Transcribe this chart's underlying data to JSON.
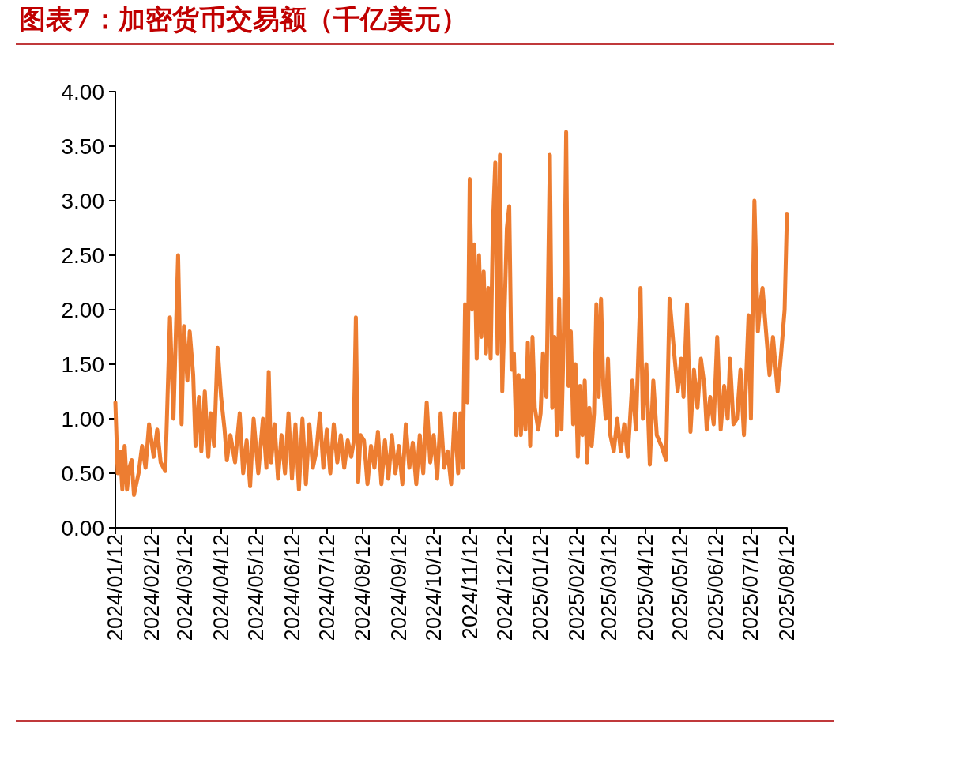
{
  "chart_data": {
    "type": "line",
    "title": "图表7：加密货币交易额（千亿美元）",
    "x": [
      "2024-01-12",
      "2024-01-14",
      "2024-01-16",
      "2024-01-18",
      "2024-01-20",
      "2024-01-22",
      "2024-01-24",
      "2024-01-26",
      "2024-01-28",
      "2024-02-01",
      "2024-02-04",
      "2024-02-07",
      "2024-02-10",
      "2024-02-14",
      "2024-02-17",
      "2024-02-20",
      "2024-02-24",
      "2024-02-28",
      "2024-03-02",
      "2024-03-06",
      "2024-03-09",
      "2024-03-11",
      "2024-03-14",
      "2024-03-16",
      "2024-03-19",
      "2024-03-21",
      "2024-03-24",
      "2024-03-26",
      "2024-03-29",
      "2024-04-01",
      "2024-04-03",
      "2024-04-06",
      "2024-04-09",
      "2024-04-12",
      "2024-04-15",
      "2024-04-17",
      "2024-04-20",
      "2024-04-24",
      "2024-04-28",
      "2024-05-01",
      "2024-05-04",
      "2024-05-07",
      "2024-05-10",
      "2024-05-14",
      "2024-05-18",
      "2024-05-21",
      "2024-05-23",
      "2024-05-25",
      "2024-05-28",
      "2024-05-31",
      "2024-06-03",
      "2024-06-06",
      "2024-06-09",
      "2024-06-12",
      "2024-06-15",
      "2024-06-18",
      "2024-06-21",
      "2024-06-24",
      "2024-06-27",
      "2024-06-30",
      "2024-07-03",
      "2024-07-06",
      "2024-07-09",
      "2024-07-12",
      "2024-07-15",
      "2024-07-18",
      "2024-07-21",
      "2024-07-24",
      "2024-07-27",
      "2024-07-30",
      "2024-08-02",
      "2024-08-04",
      "2024-08-06",
      "2024-08-08",
      "2024-08-10",
      "2024-08-13",
      "2024-08-16",
      "2024-08-19",
      "2024-08-22",
      "2024-08-25",
      "2024-08-28",
      "2024-08-31",
      "2024-09-03",
      "2024-09-06",
      "2024-09-09",
      "2024-09-12",
      "2024-09-15",
      "2024-09-18",
      "2024-09-21",
      "2024-09-24",
      "2024-09-27",
      "2024-09-30",
      "2024-10-03",
      "2024-10-06",
      "2024-10-09",
      "2024-10-12",
      "2024-10-15",
      "2024-10-18",
      "2024-10-21",
      "2024-10-24",
      "2024-10-27",
      "2024-10-30",
      "2024-11-02",
      "2024-11-04",
      "2024-11-06",
      "2024-11-08",
      "2024-11-10",
      "2024-11-12",
      "2024-11-14",
      "2024-11-16",
      "2024-11-18",
      "2024-11-20",
      "2024-11-22",
      "2024-11-24",
      "2024-11-26",
      "2024-11-28",
      "2024-11-30",
      "2024-12-02",
      "2024-12-04",
      "2024-12-06",
      "2024-12-08",
      "2024-12-10",
      "2024-12-12",
      "2024-12-14",
      "2024-12-16",
      "2024-12-18",
      "2024-12-20",
      "2024-12-22",
      "2024-12-24",
      "2024-12-26",
      "2024-12-28",
      "2024-12-30",
      "2025-01-01",
      "2025-01-03",
      "2025-01-05",
      "2025-01-07",
      "2025-01-10",
      "2025-01-12",
      "2025-01-14",
      "2025-01-17",
      "2025-01-20",
      "2025-01-22",
      "2025-01-24",
      "2025-01-26",
      "2025-01-28",
      "2025-01-30",
      "2025-02-01",
      "2025-02-03",
      "2025-02-05",
      "2025-02-07",
      "2025-02-09",
      "2025-02-11",
      "2025-02-13",
      "2025-02-15",
      "2025-02-17",
      "2025-02-19",
      "2025-02-21",
      "2025-02-23",
      "2025-02-25",
      "2025-02-27",
      "2025-03-01",
      "2025-03-03",
      "2025-03-05",
      "2025-03-07",
      "2025-03-09",
      "2025-03-11",
      "2025-03-13",
      "2025-03-16",
      "2025-03-19",
      "2025-03-22",
      "2025-03-25",
      "2025-03-28",
      "2025-04-01",
      "2025-04-04",
      "2025-04-08",
      "2025-04-10",
      "2025-04-13",
      "2025-04-16",
      "2025-04-19",
      "2025-04-22",
      "2025-04-26",
      "2025-04-30",
      "2025-05-03",
      "2025-05-07",
      "2025-05-10",
      "2025-05-13",
      "2025-05-15",
      "2025-05-18",
      "2025-05-21",
      "2025-05-24",
      "2025-05-27",
      "2025-05-30",
      "2025-06-02",
      "2025-06-04",
      "2025-06-07",
      "2025-06-10",
      "2025-06-13",
      "2025-06-16",
      "2025-06-19",
      "2025-06-22",
      "2025-06-24",
      "2025-06-27",
      "2025-06-30",
      "2025-07-03",
      "2025-07-06",
      "2025-07-10",
      "2025-07-12",
      "2025-07-15",
      "2025-07-18",
      "2025-07-20",
      "2025-07-22",
      "2025-07-25",
      "2025-07-28",
      "2025-07-31",
      "2025-08-04",
      "2025-08-07",
      "2025-08-10",
      "2025-08-12"
    ],
    "series": [
      {
        "color": "#ed7d31",
        "values": [
          1.15,
          0.5,
          0.7,
          0.35,
          0.75,
          0.35,
          0.55,
          0.62,
          0.3,
          0.5,
          0.75,
          0.55,
          0.95,
          0.65,
          0.9,
          0.6,
          0.52,
          1.93,
          1.0,
          2.5,
          0.95,
          1.85,
          1.35,
          1.8,
          1.4,
          0.75,
          1.2,
          0.7,
          1.25,
          0.65,
          1.05,
          0.75,
          1.65,
          1.2,
          0.9,
          0.62,
          0.85,
          0.6,
          1.05,
          0.5,
          0.8,
          0.38,
          1.0,
          0.5,
          1.0,
          0.55,
          1.43,
          0.6,
          0.95,
          0.45,
          0.85,
          0.5,
          1.05,
          0.45,
          0.95,
          0.35,
          1.0,
          0.4,
          0.95,
          0.55,
          0.7,
          1.05,
          0.55,
          0.9,
          0.5,
          0.95,
          0.6,
          0.85,
          0.55,
          0.8,
          0.65,
          0.78,
          1.93,
          0.42,
          0.85,
          0.8,
          0.4,
          0.75,
          0.55,
          0.88,
          0.4,
          0.8,
          0.45,
          0.85,
          0.5,
          0.75,
          0.4,
          0.95,
          0.55,
          0.78,
          0.4,
          0.85,
          0.5,
          1.15,
          0.6,
          0.85,
          0.45,
          1.05,
          0.55,
          0.7,
          0.4,
          1.05,
          0.5,
          1.05,
          0.55,
          2.05,
          1.15,
          3.2,
          2.0,
          2.6,
          1.55,
          2.5,
          1.75,
          2.35,
          1.6,
          2.2,
          1.55,
          2.8,
          3.35,
          1.6,
          3.42,
          1.25,
          2.0,
          2.75,
          2.95,
          1.45,
          1.6,
          0.85,
          1.4,
          0.85,
          1.35,
          0.9,
          1.7,
          0.75,
          1.75,
          1.1,
          0.9,
          1.05,
          1.6,
          1.2,
          3.42,
          1.1,
          1.75,
          0.85,
          2.1,
          0.9,
          1.8,
          3.63,
          1.3,
          1.8,
          0.95,
          1.5,
          0.65,
          1.3,
          0.85,
          1.35,
          0.6,
          1.1,
          0.75,
          1.05,
          2.05,
          1.2,
          2.1,
          1.3,
          1.0,
          1.55,
          0.85,
          0.7,
          1.0,
          0.7,
          0.95,
          0.65,
          1.35,
          0.9,
          2.2,
          1.0,
          1.5,
          0.58,
          1.35,
          0.85,
          0.75,
          0.62,
          2.1,
          1.6,
          1.25,
          1.55,
          1.2,
          2.05,
          0.88,
          1.45,
          1.1,
          1.55,
          1.3,
          0.9,
          1.2,
          0.95,
          1.75,
          0.9,
          1.3,
          1.0,
          1.55,
          0.95,
          1.0,
          1.45,
          0.85,
          1.95,
          1.0,
          3.0,
          1.8,
          2.05,
          2.2,
          1.8,
          1.4,
          1.75,
          1.25,
          1.6,
          2.0,
          2.88
        ]
      }
    ],
    "xlim": [
      "2024-01-12",
      "2025-08-12"
    ],
    "xticks": [
      {
        "value": "2024-01-12",
        "label": "2024/01/12"
      },
      {
        "value": "2024-02-12",
        "label": "2024/02/12"
      },
      {
        "value": "2024-03-12",
        "label": "2024/03/12"
      },
      {
        "value": "2024-04-12",
        "label": "2024/04/12"
      },
      {
        "value": "2024-05-12",
        "label": "2024/05/12"
      },
      {
        "value": "2024-06-12",
        "label": "2024/06/12"
      },
      {
        "value": "2024-07-12",
        "label": "2024/07/12"
      },
      {
        "value": "2024-08-12",
        "label": "2024/08/12"
      },
      {
        "value": "2024-09-12",
        "label": "2024/09/12"
      },
      {
        "value": "2024-10-12",
        "label": "2024/10/12"
      },
      {
        "value": "2024-11-12",
        "label": "2024/11/12"
      },
      {
        "value": "2024-12-12",
        "label": "2024/12/12"
      },
      {
        "value": "2025-01-12",
        "label": "2025/01/12"
      },
      {
        "value": "2025-02-12",
        "label": "2025/02/12"
      },
      {
        "value": "2025-03-12",
        "label": "2025/03/12"
      },
      {
        "value": "2025-04-12",
        "label": "2025/04/12"
      },
      {
        "value": "2025-05-12",
        "label": "2025/05/12"
      },
      {
        "value": "2025-06-12",
        "label": "2025/06/12"
      },
      {
        "value": "2025-07-12",
        "label": "2025/07/12"
      },
      {
        "value": "2025-08-12",
        "label": "2025/08/12"
      }
    ],
    "ylim": [
      0,
      4
    ],
    "yticks": [
      {
        "value": 0,
        "label": "0.00"
      },
      {
        "value": 0.5,
        "label": "0.50"
      },
      {
        "value": 1,
        "label": "1.00"
      },
      {
        "value": 1.5,
        "label": "1.50"
      },
      {
        "value": 2,
        "label": "2.00"
      },
      {
        "value": 2.5,
        "label": "2.50"
      },
      {
        "value": 3,
        "label": "3.00"
      },
      {
        "value": 3.5,
        "label": "3.50"
      },
      {
        "value": 4,
        "label": "4.00"
      }
    ],
    "grid": false,
    "marker": "none",
    "line_style": "solid"
  }
}
